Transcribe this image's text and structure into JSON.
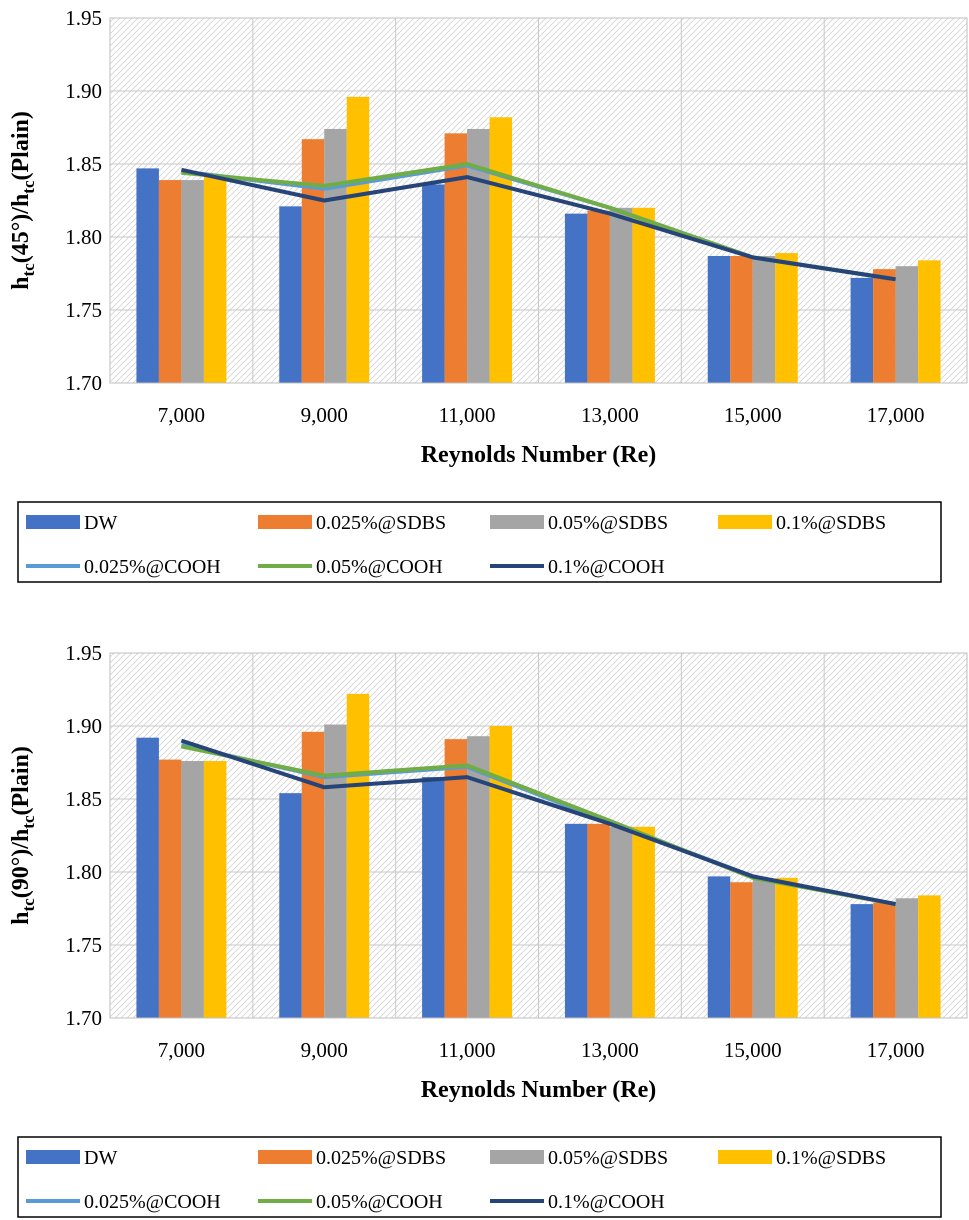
{
  "chart_data": [
    {
      "type": "bar",
      "title": "",
      "ylabel_parts": {
        "h1": "h",
        "s1": "tc",
        "mid": "(45°)/h",
        "s2": "tc",
        "end": "(Plain)"
      },
      "xlabel": "Reynolds Number (Re)",
      "categories": [
        "7,000",
        "9,000",
        "11,000",
        "13,000",
        "15,000",
        "17,000"
      ],
      "ylim": [
        1.7,
        1.95
      ],
      "yticks": [
        "1.70",
        "1.75",
        "1.80",
        "1.85",
        "1.90",
        "1.95"
      ],
      "grid": true,
      "legend_position": "bottom",
      "bar_series": [
        {
          "name": "DW",
          "color": "#4472C4",
          "values": [
            1.847,
            1.821,
            1.836,
            1.816,
            1.787,
            1.772
          ]
        },
        {
          "name": "0.025%@SDBS",
          "color": "#ED7D31",
          "values": [
            1.839,
            1.867,
            1.871,
            1.818,
            1.787,
            1.778
          ]
        },
        {
          "name": "0.05%@SDBS",
          "color": "#A5A5A5",
          "values": [
            1.839,
            1.874,
            1.874,
            1.82,
            1.787,
            1.78
          ]
        },
        {
          "name": "0.1%@SDBS",
          "color": "#FFC000",
          "values": [
            1.842,
            1.896,
            1.882,
            1.82,
            1.789,
            1.784
          ]
        }
      ],
      "line_series": [
        {
          "name": "0.025%@COOH",
          "color": "#5B9BD5",
          "values": [
            1.845,
            1.833,
            1.849,
            1.82,
            1.786,
            1.771
          ]
        },
        {
          "name": "0.05%@COOH",
          "color": "#70AD47",
          "values": [
            1.844,
            1.835,
            1.85,
            1.82,
            1.786,
            1.771
          ]
        },
        {
          "name": "0.1%@COOH",
          "color": "#264478",
          "values": [
            1.846,
            1.825,
            1.841,
            1.816,
            1.786,
            1.771
          ]
        }
      ]
    },
    {
      "type": "bar",
      "title": "",
      "ylabel_parts": {
        "h1": "h",
        "s1": "tc",
        "mid": "(90°)/h",
        "s2": "tc",
        "end": "(Plain)"
      },
      "xlabel": "Reynolds Number (Re)",
      "categories": [
        "7,000",
        "9,000",
        "11,000",
        "13,000",
        "15,000",
        "17,000"
      ],
      "ylim": [
        1.7,
        1.95
      ],
      "yticks": [
        "1.70",
        "1.75",
        "1.80",
        "1.85",
        "1.90",
        "1.95"
      ],
      "grid": true,
      "legend_position": "bottom",
      "bar_series": [
        {
          "name": "DW",
          "color": "#4472C4",
          "values": [
            1.892,
            1.854,
            1.865,
            1.833,
            1.797,
            1.778
          ]
        },
        {
          "name": "0.025%@SDBS",
          "color": "#ED7D31",
          "values": [
            1.877,
            1.896,
            1.891,
            1.833,
            1.793,
            1.779
          ]
        },
        {
          "name": "0.05%@SDBS",
          "color": "#A5A5A5",
          "values": [
            1.876,
            1.901,
            1.893,
            1.831,
            1.795,
            1.782
          ]
        },
        {
          "name": "0.1%@SDBS",
          "color": "#FFC000",
          "values": [
            1.876,
            1.922,
            1.9,
            1.831,
            1.796,
            1.784
          ]
        }
      ],
      "line_series": [
        {
          "name": "0.025%@COOH",
          "color": "#5B9BD5",
          "values": [
            1.887,
            1.865,
            1.872,
            1.834,
            1.797,
            1.778
          ]
        },
        {
          "name": "0.05%@COOH",
          "color": "#70AD47",
          "values": [
            1.886,
            1.866,
            1.873,
            1.835,
            1.796,
            1.778
          ]
        },
        {
          "name": "0.1%@COOH",
          "color": "#264478",
          "values": [
            1.89,
            1.858,
            1.865,
            1.833,
            1.797,
            1.778
          ]
        }
      ]
    }
  ]
}
